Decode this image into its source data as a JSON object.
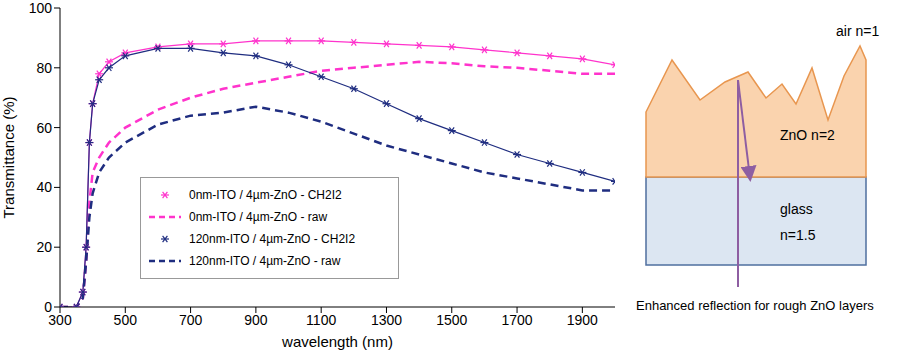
{
  "chart_data": {
    "type": "line",
    "x_label": "wavelength (nm)",
    "y_label": "Transmittance (%)",
    "x": [
      300,
      350,
      370,
      380,
      390,
      400,
      420,
      450,
      500,
      600,
      700,
      800,
      900,
      1000,
      1100,
      1200,
      1300,
      1400,
      1500,
      1600,
      1700,
      1800,
      1900,
      2000
    ],
    "series": [
      {
        "name": "0nm-ITO / 4µm-ZnO - CH2I2",
        "color": "#ff33cc",
        "marker": "star",
        "line_style": "solid",
        "values": [
          0,
          0,
          5,
          20,
          55,
          68,
          78,
          82,
          85,
          87,
          88,
          88,
          89,
          89,
          89,
          88.5,
          88,
          87.5,
          87,
          86,
          85,
          84,
          83,
          81
        ]
      },
      {
        "name": "0nm-ITO / 4µm-ZnO - raw",
        "color": "#ff33cc",
        "marker": "none",
        "line_style": "dashed",
        "values": [
          0,
          0,
          3,
          15,
          35,
          45,
          50,
          55,
          60,
          66,
          70,
          73,
          75,
          77,
          79,
          80,
          81,
          82,
          81.5,
          80.5,
          80,
          79,
          78,
          78
        ]
      },
      {
        "name": "120nm-ITO / 4µm-ZnO - CH2I2",
        "color": "#1f2d80",
        "marker": "star",
        "line_style": "solid",
        "values": [
          0,
          0,
          5,
          20,
          55,
          68,
          76,
          80,
          84,
          86.5,
          86.5,
          85,
          84,
          81,
          77,
          73,
          68,
          63,
          59,
          55,
          51,
          48,
          45,
          42
        ]
      },
      {
        "name": "120nm-ITO / 4µm-ZnO - raw",
        "color": "#1f2d80",
        "marker": "none",
        "line_style": "dashed",
        "values": [
          0,
          0,
          3,
          15,
          30,
          38,
          45,
          50,
          55,
          61,
          64,
          65,
          67,
          65,
          62,
          58,
          54,
          51,
          48,
          45,
          43,
          41,
          39,
          39
        ]
      }
    ],
    "xlim": [
      300,
      2000
    ],
    "xticks": [
      300,
      500,
      700,
      900,
      1100,
      1300,
      1500,
      1700,
      1900
    ],
    "ylim": [
      0,
      100
    ],
    "yticks": [
      0,
      20,
      40,
      60,
      80,
      100
    ],
    "grid": false,
    "legend": "lower left"
  },
  "diagram": {
    "layer_labels": [
      "air n=1",
      "ZnO n=2",
      "glass n=1.5"
    ],
    "caption": "Enhanced reflection for rough ZnO layers"
  }
}
